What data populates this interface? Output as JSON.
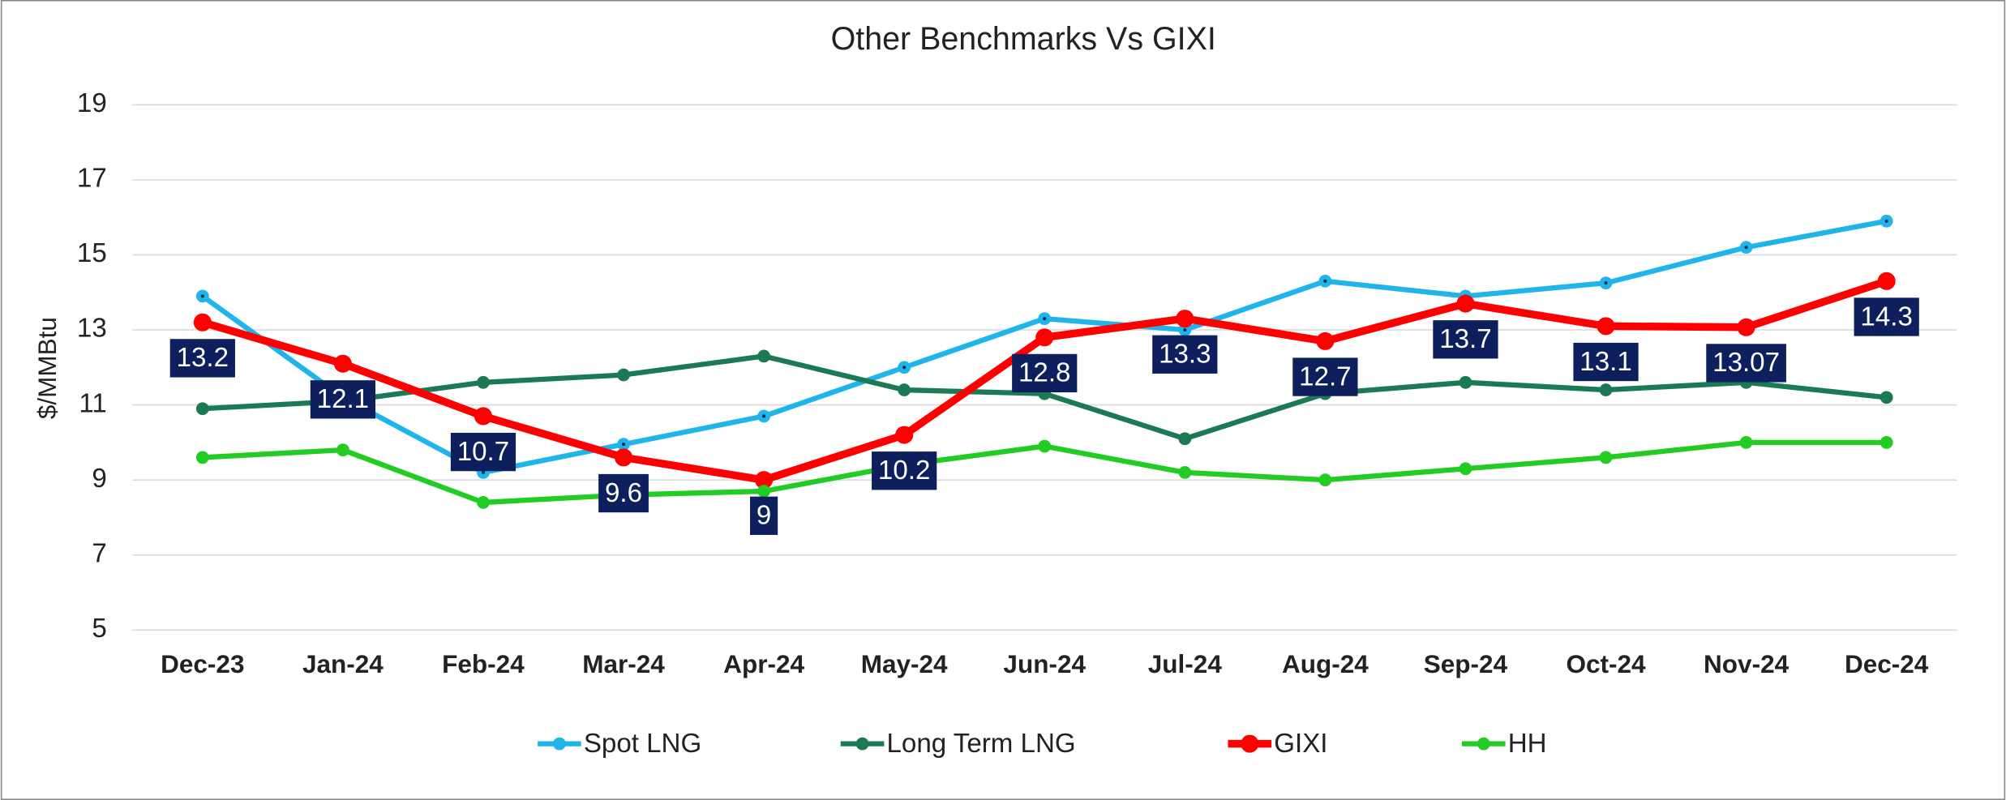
{
  "chart_data": {
    "type": "line",
    "title": "Other Benchmarks Vs GIXI",
    "y_label": "$/MMBtu",
    "categories": [
      "Dec-23",
      "Jan-24",
      "Feb-24",
      "Mar-24",
      "Apr-24",
      "May-24",
      "Jun-24",
      "Jul-24",
      "Aug-24",
      "Sep-24",
      "Oct-24",
      "Nov-24",
      "Dec-24"
    ],
    "series": [
      {
        "name": "Spot LNG",
        "color": "#1fb4ea",
        "values": [
          13.9,
          11.2,
          9.2,
          9.95,
          10.7,
          12.0,
          13.3,
          13.0,
          14.3,
          13.9,
          14.25,
          15.2,
          15.9
        ]
      },
      {
        "name": "Long Term LNG",
        "color": "#1b7a55",
        "values": [
          10.9,
          11.1,
          11.6,
          11.8,
          12.3,
          11.4,
          11.3,
          10.1,
          11.3,
          11.6,
          11.4,
          11.6,
          11.2
        ]
      },
      {
        "name": "GIXI",
        "color": "#ff0000",
        "values": [
          13.2,
          12.1,
          10.7,
          9.6,
          9,
          10.2,
          12.8,
          13.3,
          12.7,
          13.7,
          13.1,
          13.07,
          14.3
        ],
        "data_labels": true
      },
      {
        "name": "HH",
        "color": "#22cc22",
        "values": [
          9.6,
          9.8,
          8.4,
          8.6,
          8.7,
          9.4,
          9.9,
          9.2,
          9.0,
          9.3,
          9.6,
          10.0,
          10.0
        ]
      }
    ],
    "ylim": [
      5,
      19
    ],
    "yticks": [
      5,
      7,
      9,
      11,
      13,
      15,
      17,
      19
    ],
    "grid": true,
    "legend": "bottom"
  }
}
